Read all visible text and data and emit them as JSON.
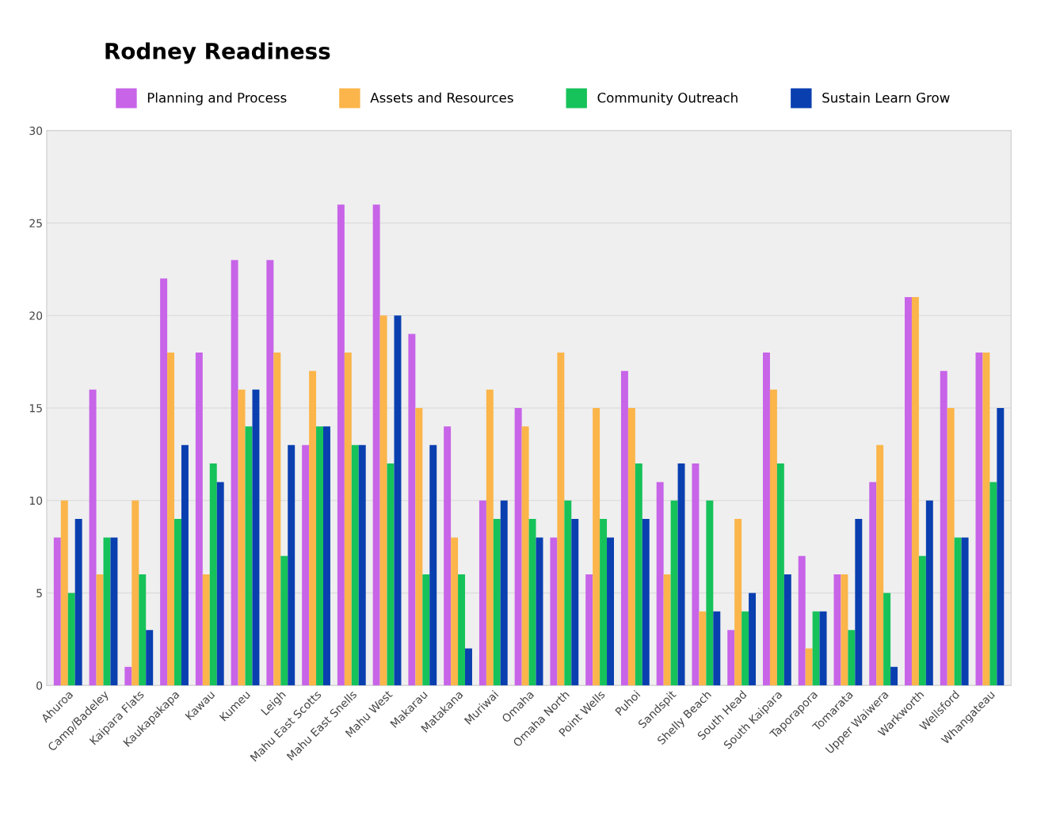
{
  "chart_data": {
    "type": "bar",
    "title": "Rodney Readiness",
    "categories": [
      "Ahuroa",
      "Camp/Badeley",
      "Kaipara Flats",
      "Kaukapakapa",
      "Kawau",
      "Kumeu",
      "Leigh",
      "Mahu East Scotts",
      "Mahu East Snells",
      "Mahu West",
      "Makarau",
      "Matakana",
      "Muriwai",
      "Omaha",
      "Omaha North",
      "Point Wells",
      "Puhoi",
      "Sandspit",
      "Shelly Beach",
      "South Head",
      "South Kaipara",
      "Taporapora",
      "Tomarata",
      "Upper Waiwera",
      "Warkworth",
      "Wellsford",
      "Whangateau"
    ],
    "series": [
      {
        "name": "Planning and Process",
        "color": "#c764e8",
        "values": [
          8,
          16,
          1,
          22,
          18,
          23,
          23,
          13,
          26,
          26,
          19,
          14,
          10,
          15,
          8,
          6,
          17,
          11,
          12,
          3,
          18,
          7,
          6,
          11,
          21,
          17,
          18
        ]
      },
      {
        "name": "Assets and Resources",
        "color": "#fbb54a",
        "values": [
          10,
          6,
          10,
          18,
          6,
          16,
          18,
          17,
          18,
          20,
          15,
          8,
          16,
          14,
          18,
          15,
          15,
          6,
          4,
          9,
          16,
          2,
          6,
          13,
          21,
          15,
          18
        ]
      },
      {
        "name": "Community Outreach",
        "color": "#16c25a",
        "values": [
          5,
          8,
          6,
          9,
          12,
          14,
          7,
          14,
          13,
          12,
          6,
          6,
          9,
          9,
          10,
          9,
          12,
          10,
          10,
          4,
          12,
          4,
          3,
          5,
          7,
          8,
          11
        ]
      },
      {
        "name": "Sustain Learn Grow",
        "color": "#0a3fb0",
        "values": [
          9,
          8,
          3,
          13,
          11,
          16,
          13,
          14,
          13,
          20,
          13,
          2,
          10,
          8,
          9,
          8,
          9,
          12,
          4,
          5,
          6,
          4,
          9,
          1,
          10,
          8,
          15
        ]
      }
    ],
    "ylim": [
      0,
      30
    ],
    "yticks": [
      0,
      5,
      10,
      15,
      20,
      25,
      30
    ],
    "grid": "y",
    "legend": "top"
  }
}
